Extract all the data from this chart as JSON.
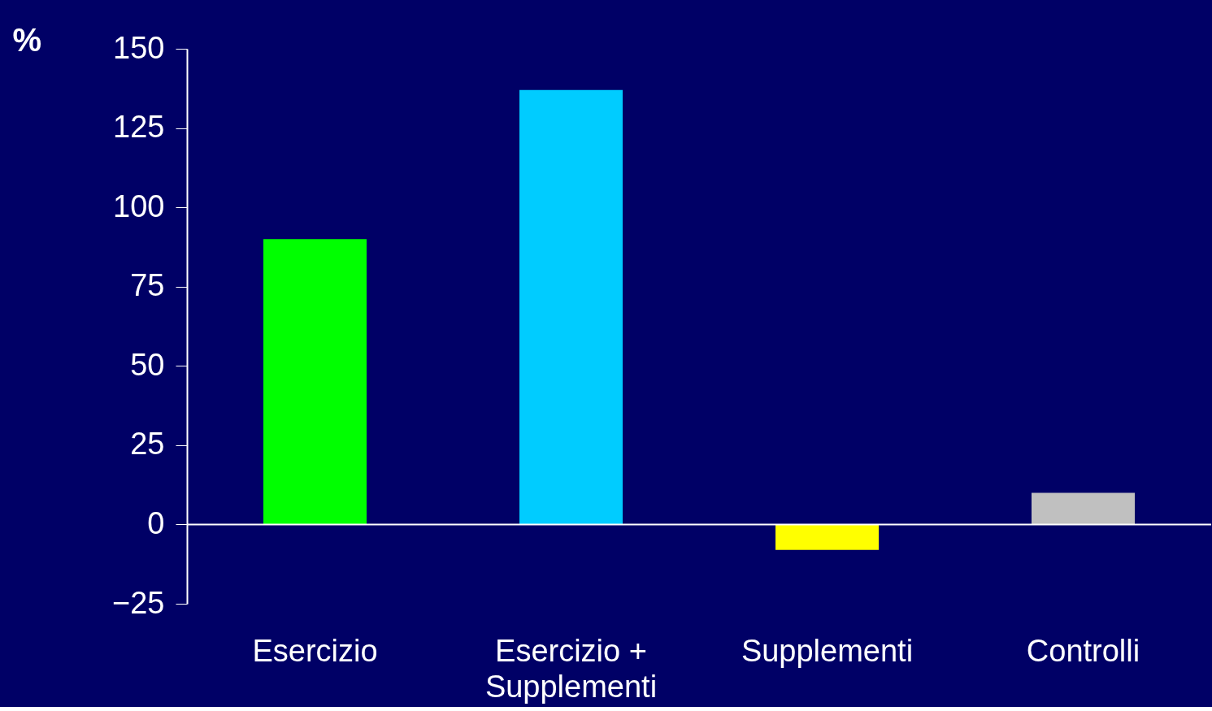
{
  "chart_data": {
    "type": "bar",
    "ylabel": "%",
    "categories": [
      "Esercizio",
      "Esercizio + Supplementi",
      "Supplementi",
      "Controlli"
    ],
    "values": [
      90,
      137,
      -8,
      10
    ],
    "colors": [
      "#00ff00",
      "#00ccff",
      "#ffff00",
      "#c0c0c0"
    ],
    "ylim": [
      -25,
      150
    ],
    "yticks": [
      -25,
      0,
      25,
      50,
      75,
      100,
      125,
      150
    ]
  }
}
